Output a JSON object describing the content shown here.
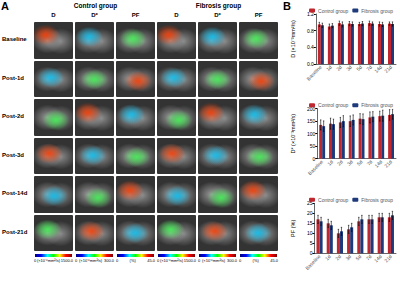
{
  "panel_a": {
    "label": "A",
    "rows": [
      "Baseline",
      "Post-1d",
      "Post-2d",
      "Post-3d",
      "Post-14d",
      "Post-21d"
    ],
    "groups": [
      {
        "title": "Control group",
        "columns": [
          "D",
          "D*",
          "PF"
        ],
        "colorbars": [
          {
            "min": "0",
            "unit": "(×10⁻⁶mm²/s)",
            "max": "1500.0"
          },
          {
            "min": "0",
            "unit": "(×10⁻⁶mm²/s)",
            "max": "300.0"
          },
          {
            "min": "0",
            "unit": "(%)",
            "max": "45.0"
          }
        ]
      },
      {
        "title": "Fibrosis group",
        "columns": [
          "D",
          "D*",
          "PF"
        ],
        "colorbars": [
          {
            "min": "0",
            "unit": "(×10⁻⁶mm²/s)",
            "max": "1500.0"
          },
          {
            "min": "0",
            "unit": "(×10⁻⁶mm²/s)",
            "max": "300.0"
          },
          {
            "min": "0",
            "unit": "(%)",
            "max": "45.0"
          }
        ]
      }
    ]
  },
  "panel_b_label": "B",
  "chart_data": [
    {
      "type": "bar",
      "y_label": "D (×10⁻³mm²/s)",
      "categories": [
        "Baseline",
        "1d",
        "2d",
        "3d",
        "5d",
        "7d",
        "14d",
        "21d"
      ],
      "series": [
        {
          "name": "Control group",
          "color": "#c0262d",
          "values": [
            0.95,
            0.9,
            0.98,
            0.97,
            0.96,
            0.98,
            0.96,
            0.97
          ],
          "errors": [
            0.05,
            0.06,
            0.05,
            0.05,
            0.04,
            0.05,
            0.05,
            0.04
          ]
        },
        {
          "name": "Fibrosis group",
          "color": "#1f3a7a",
          "values": [
            0.93,
            0.92,
            0.95,
            0.96,
            0.97,
            0.97,
            0.95,
            0.96
          ],
          "errors": [
            0.05,
            0.05,
            0.06,
            0.05,
            0.05,
            0.04,
            0.05,
            0.05
          ]
        }
      ],
      "ylim": [
        0,
        1.2
      ],
      "yticks": [
        {
          "value": 0,
          "label": "0.0"
        },
        0.4,
        0.8,
        1.2
      ],
      "grid": false,
      "legend": "top"
    },
    {
      "type": "bar",
      "y_label": "D* (×10⁻³mm²/s)",
      "categories": [
        "Baseline",
        "1d",
        "2d",
        "3d",
        "5d",
        "7d",
        "14d",
        "21d"
      ],
      "series": [
        {
          "name": "Control group",
          "color": "#c0262d",
          "values": [
            135,
            140,
            145,
            150,
            160,
            165,
            170,
            175
          ],
          "errors": [
            20,
            22,
            20,
            21,
            20,
            22,
            20,
            21
          ]
        },
        {
          "name": "Fibrosis group",
          "color": "#1f3a7a",
          "values": [
            130,
            138,
            150,
            155,
            158,
            168,
            172,
            178
          ],
          "errors": [
            21,
            20,
            22,
            20,
            21,
            20,
            22,
            20
          ]
        }
      ],
      "ylim": [
        0,
        200
      ],
      "yticks": [
        0,
        50,
        100,
        150,
        200
      ],
      "grid": false,
      "legend": "top"
    },
    {
      "type": "bar",
      "y_label": "PF (%)",
      "categories": [
        "Baseline",
        "1d",
        "2d",
        "3d",
        "5d",
        "7d",
        "14d",
        "21d"
      ],
      "series": [
        {
          "name": "Control group",
          "color": "#c0262d",
          "values": [
            17,
            15,
            10,
            12,
            16,
            17,
            18,
            18
          ],
          "errors": [
            2,
            2,
            2,
            2,
            2,
            2,
            2,
            2
          ]
        },
        {
          "name": "Fibrosis group",
          "color": "#1f3a7a",
          "values": [
            16,
            14,
            11,
            13,
            17,
            17,
            18,
            19
          ],
          "errors": [
            2,
            2,
            2,
            2,
            2,
            2,
            2,
            2
          ]
        }
      ],
      "ylim": [
        0,
        25
      ],
      "yticks": [
        0,
        5,
        10,
        15,
        20,
        25
      ],
      "grid": false,
      "legend": "top"
    }
  ]
}
